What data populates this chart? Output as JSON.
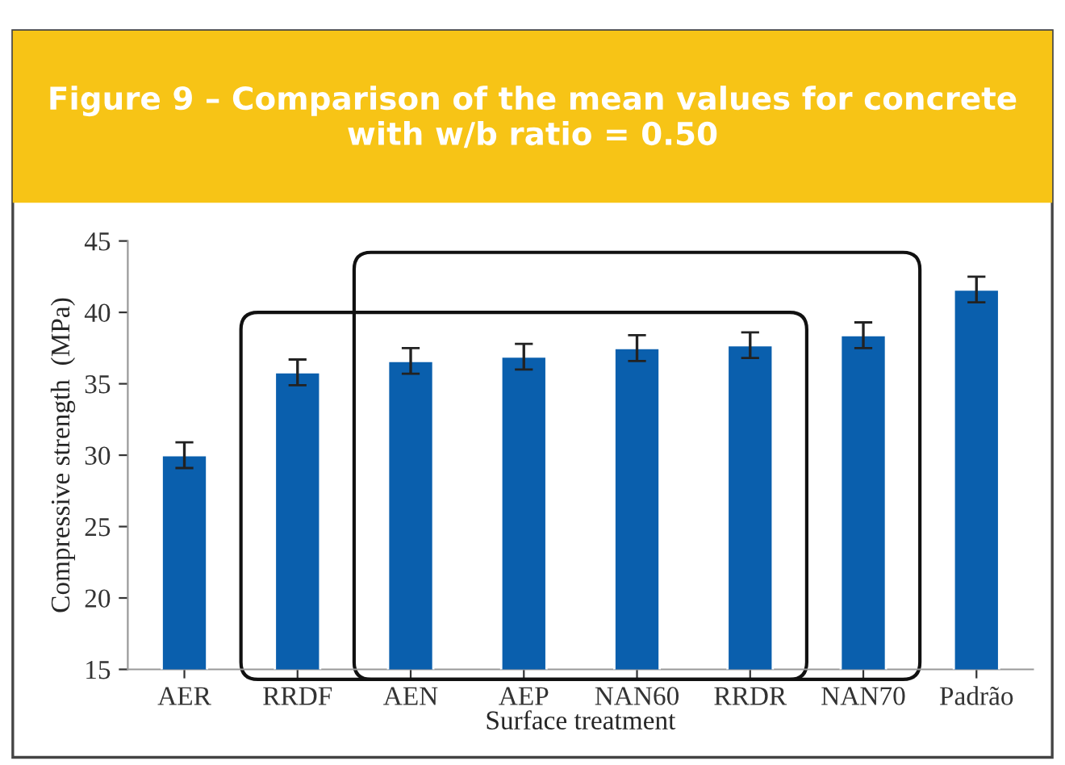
{
  "chart_data": {
    "type": "bar",
    "title": "Figure 9 – Comparison of the mean values for concrete with w/b ratio = 0.50",
    "xlabel": "Surface treatment",
    "ylabel": "Compressive strength  (MPa)",
    "categories": [
      "AER",
      "RRDF",
      "AEN",
      "AEP",
      "NAN60",
      "RRDR",
      "NAN70",
      "Padrão"
    ],
    "values": [
      30.0,
      35.8,
      36.6,
      36.9,
      37.5,
      37.7,
      38.4,
      41.6
    ],
    "errors": [
      0.9,
      0.9,
      0.9,
      0.9,
      0.9,
      0.9,
      0.9,
      0.9
    ],
    "color": "#0a5fad",
    "ylim": [
      15,
      45
    ],
    "yticks": [
      15,
      20,
      25,
      30,
      35,
      40,
      45
    ],
    "grid": false
  }
}
